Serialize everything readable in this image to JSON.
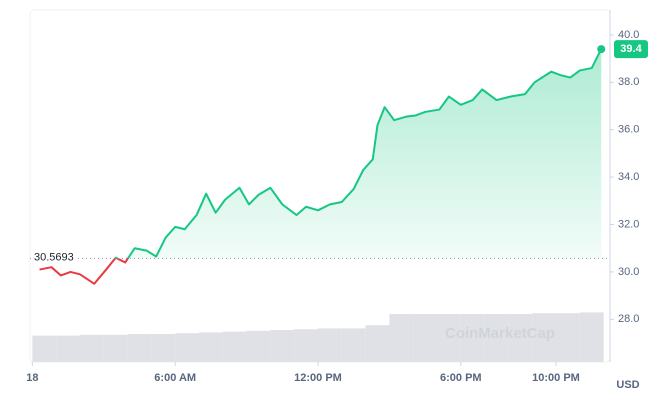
{
  "chart_data": {
    "type": "line",
    "x": [
      0.3,
      0.8,
      1.2,
      1.6,
      2.0,
      2.6,
      3.1,
      3.5,
      3.9,
      4.3,
      4.8,
      5.2,
      5.6,
      6.0,
      6.4,
      6.9,
      7.3,
      7.7,
      8.1,
      8.7,
      9.1,
      9.5,
      10.0,
      10.5,
      11.1,
      11.5,
      12.0,
      12.5,
      13.0,
      13.5,
      13.9,
      14.3,
      14.5,
      14.8,
      15.2,
      15.7,
      16.1,
      16.5,
      17.1,
      17.5,
      18.0,
      18.5,
      18.9,
      19.5,
      20.1,
      20.7,
      21.1,
      21.8,
      22.2,
      22.6,
      23.0,
      23.5,
      23.9
    ],
    "values": [
      30.1,
      30.2,
      29.85,
      30.0,
      29.9,
      29.5,
      30.1,
      30.6,
      30.4,
      31.0,
      30.9,
      30.65,
      31.45,
      31.9,
      31.8,
      32.4,
      33.3,
      32.5,
      33.05,
      33.55,
      32.85,
      33.25,
      33.55,
      32.85,
      32.4,
      32.75,
      32.6,
      32.85,
      32.95,
      33.5,
      34.3,
      34.75,
      36.2,
      36.95,
      36.4,
      36.55,
      36.6,
      36.75,
      36.85,
      37.4,
      37.05,
      37.25,
      37.7,
      37.25,
      37.4,
      37.5,
      38.0,
      38.45,
      38.3,
      38.2,
      38.5,
      38.6,
      39.4
    ],
    "color": "#16c784",
    "down_color": "#ea3943",
    "baseline": 30.5693,
    "xlim": [
      -0.1,
      24.1
    ],
    "xticks": [
      {
        "value": 0,
        "label": "18"
      },
      {
        "value": 6,
        "label": "6:00 AM"
      },
      {
        "value": 12,
        "label": "12:00 PM"
      },
      {
        "value": 18,
        "label": "6:00 PM"
      },
      {
        "value": 22,
        "label": "10:00 PM"
      }
    ],
    "ylim": [
      26.2,
      41.05
    ],
    "yticks": [
      {
        "value": 28,
        "label": "28.0"
      },
      {
        "value": 30,
        "label": "30.0"
      },
      {
        "value": 32,
        "label": "32.0"
      },
      {
        "value": 34,
        "label": "34.0"
      },
      {
        "value": 36,
        "label": "36.0"
      },
      {
        "value": 38,
        "label": "38.0"
      },
      {
        "value": 40,
        "label": "40.0"
      }
    ],
    "currency": "USD",
    "watermark": "CoinMarketCap",
    "volume": {
      "values": [
        33,
        33,
        34,
        34,
        35,
        35,
        36,
        37,
        38,
        39,
        40,
        41,
        42,
        42,
        46,
        60,
        60,
        60,
        60,
        60,
        60,
        61,
        61,
        62
      ],
      "y2lim": [
        0,
        100
      ],
      "color": "#dfe1e6"
    }
  }
}
